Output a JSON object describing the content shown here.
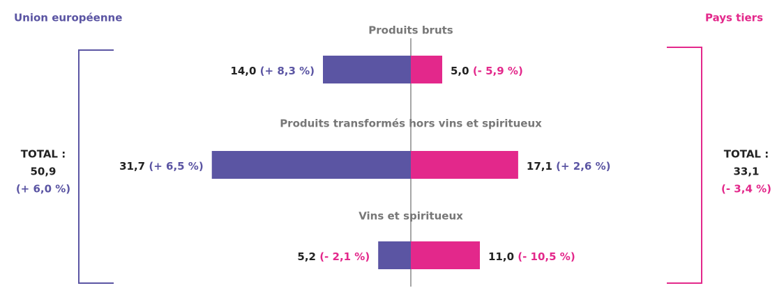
{
  "chart_data": {
    "type": "butterfly",
    "categories": [
      "Produits bruts",
      "Produits transformés hors vins et spiritueux",
      "Vins et spiritueux"
    ],
    "total_label": "TOTAL :",
    "change_colors": {
      "positive": "#5b55a3",
      "negative": "#e3288b"
    },
    "series": [
      {
        "name": "Union européenne",
        "color": "#5b55a3",
        "side": "left",
        "values": [
          14.0,
          31.7,
          5.2
        ],
        "value_labels": [
          "14,0",
          "31,7",
          "5,2"
        ],
        "changes": [
          8.3,
          6.5,
          -2.1
        ],
        "change_labels": [
          "(+ 8,3 %)",
          "(+ 6,5 %)",
          "(- 2,1 %)"
        ],
        "total": 50.9,
        "total_value_label": "50,9",
        "total_change": 6.0,
        "total_change_label": "(+ 6,0 %)"
      },
      {
        "name": "Pays tiers",
        "color": "#e3288b",
        "side": "right",
        "values": [
          5.0,
          17.1,
          11.0
        ],
        "value_labels": [
          "5,0",
          "17,1",
          "11,0"
        ],
        "changes": [
          -5.9,
          2.6,
          -10.5
        ],
        "change_labels": [
          "(- 5,9 %)",
          "(+ 2,6 %)",
          "(- 10,5 %)"
        ],
        "total": 33.1,
        "total_value_label": "33,1",
        "total_change": -3.4,
        "total_change_label": "(- 3,4 %)"
      }
    ]
  }
}
